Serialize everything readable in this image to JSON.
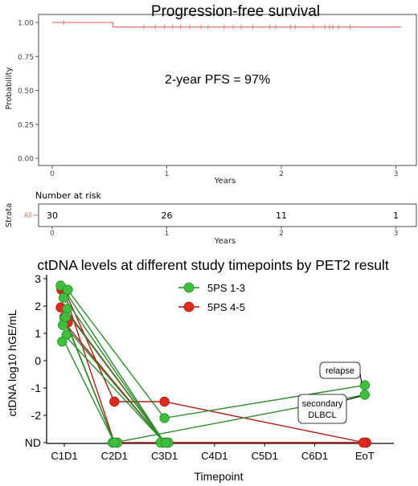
{
  "chart_data": [
    {
      "type": "line",
      "subtype": "kaplan-meier",
      "title": "Progression-free survival",
      "annotation": "2-year PFS = 97%",
      "xlabel": "Years",
      "ylabel": "Probability",
      "xlim": [
        -0.1,
        3.05
      ],
      "ylim": [
        -0.02,
        1.05
      ],
      "x_ticks": [
        0,
        1,
        2,
        3
      ],
      "y_ticks": [
        "0.00",
        "0.25",
        "0.50",
        "0.75",
        "1.00"
      ],
      "grid": false,
      "line_color": "#e07b72",
      "survival_steps": [
        {
          "x": 0,
          "y": 1.0
        },
        {
          "x": 0.53,
          "y": 1.0
        },
        {
          "x": 0.53,
          "y": 0.967
        },
        {
          "x": 3.05,
          "y": 0.967
        }
      ],
      "censor_marks": [
        {
          "x": 0.1,
          "y": 1.0
        },
        {
          "x": 0.8,
          "y": 0.967
        },
        {
          "x": 0.9,
          "y": 0.967
        },
        {
          "x": 0.98,
          "y": 0.967
        },
        {
          "x": 1.05,
          "y": 0.967
        },
        {
          "x": 1.12,
          "y": 0.967
        },
        {
          "x": 1.2,
          "y": 0.967
        },
        {
          "x": 1.3,
          "y": 0.967
        },
        {
          "x": 1.36,
          "y": 0.967
        },
        {
          "x": 1.5,
          "y": 0.967
        },
        {
          "x": 1.58,
          "y": 0.967
        },
        {
          "x": 1.65,
          "y": 0.967
        },
        {
          "x": 1.75,
          "y": 0.967
        },
        {
          "x": 1.9,
          "y": 0.967
        },
        {
          "x": 1.95,
          "y": 0.967
        },
        {
          "x": 2.08,
          "y": 0.967
        },
        {
          "x": 2.12,
          "y": 0.967
        },
        {
          "x": 2.28,
          "y": 0.967
        },
        {
          "x": 2.38,
          "y": 0.967
        },
        {
          "x": 2.42,
          "y": 0.967
        },
        {
          "x": 2.45,
          "y": 0.967
        },
        {
          "x": 2.5,
          "y": 0.967
        },
        {
          "x": 2.6,
          "y": 0.967
        }
      ]
    },
    {
      "type": "table",
      "title": "Number at risk",
      "strata_label": "Strata",
      "row_label": "All",
      "xlabel": "Years",
      "x_ticks": [
        0,
        1,
        2,
        3
      ],
      "values": [
        {
          "x": 0,
          "value": "30"
        },
        {
          "x": 1,
          "value": "26"
        },
        {
          "x": 2,
          "value": "11"
        },
        {
          "x": 3,
          "value": "1"
        }
      ]
    },
    {
      "type": "line",
      "title": "ctDNA levels at different study timepoints by PET2 result",
      "xlabel": "Timepoint",
      "ylabel": "ctDNA log10 hGE/mL",
      "categories": [
        "C1D1",
        "C2D1",
        "C3D1",
        "C4D1",
        "C5D1",
        "C6D1",
        "EoT"
      ],
      "y_ticks": [
        "ND",
        "-2",
        "-1",
        "0",
        "1",
        "2",
        "3"
      ],
      "nd_value": -3,
      "ylim": [
        -3.1,
        3.05
      ],
      "grid": false,
      "legend_position": "top-center",
      "legend": [
        {
          "name": "5PS 1-3",
          "color": "#3fbf3f"
        },
        {
          "name": "5PS 4-5",
          "color": "#e02a1f"
        }
      ],
      "series": [
        {
          "group": "5PS 1-3",
          "points": [
            [
              0,
              2.75
            ],
            [
              2,
              -2.1
            ],
            [
              6,
              -0.9
            ]
          ]
        },
        {
          "group": "5PS 1-3",
          "points": [
            [
              0,
              1.55
            ],
            [
              1,
              -3
            ],
            [
              6,
              -1.25
            ]
          ]
        },
        {
          "group": "5PS 1-3",
          "points": [
            [
              0,
              2.6
            ],
            [
              2,
              -3
            ]
          ]
        },
        {
          "group": "5PS 1-3",
          "points": [
            [
              0,
              2.3
            ],
            [
              2,
              -3
            ]
          ]
        },
        {
          "group": "5PS 1-3",
          "points": [
            [
              0,
              1.9
            ],
            [
              2,
              -3
            ]
          ]
        },
        {
          "group": "5PS 1-3",
          "points": [
            [
              0,
              1.3
            ],
            [
              2,
              -3
            ]
          ]
        },
        {
          "group": "5PS 1-3",
          "points": [
            [
              0,
              0.95
            ],
            [
              2,
              -3
            ]
          ]
        },
        {
          "group": "5PS 1-3",
          "points": [
            [
              0,
              0.7
            ],
            [
              1,
              -3
            ]
          ]
        },
        {
          "group": "5PS 1-3",
          "points": [
            [
              0,
              1.6
            ],
            [
              1,
              -3
            ]
          ]
        },
        {
          "group": "5PS 4-5",
          "points": [
            [
              0,
              2.6
            ],
            [
              1,
              -1.5
            ],
            [
              2,
              -1.5
            ],
            [
              6,
              -3
            ]
          ]
        },
        {
          "group": "5PS 4-5",
          "points": [
            [
              0,
              2.5
            ],
            [
              1,
              -3
            ],
            [
              6,
              -3
            ]
          ]
        },
        {
          "group": "5PS 4-5",
          "points": [
            [
              0,
              1.95
            ],
            [
              2,
              -3
            ],
            [
              6,
              -3
            ]
          ]
        },
        {
          "group": "5PS 4-5",
          "points": [
            [
              0,
              1.6
            ],
            [
              1,
              -3
            ]
          ]
        },
        {
          "group": "5PS 4-5",
          "points": [
            [
              0,
              1.4
            ],
            [
              2,
              -3
            ]
          ]
        }
      ],
      "annotations": [
        {
          "text": "relapse",
          "target": [
            6,
            -0.9
          ]
        },
        {
          "text": "secondary\nDLBCL",
          "target": [
            6,
            -1.25
          ]
        }
      ]
    }
  ]
}
